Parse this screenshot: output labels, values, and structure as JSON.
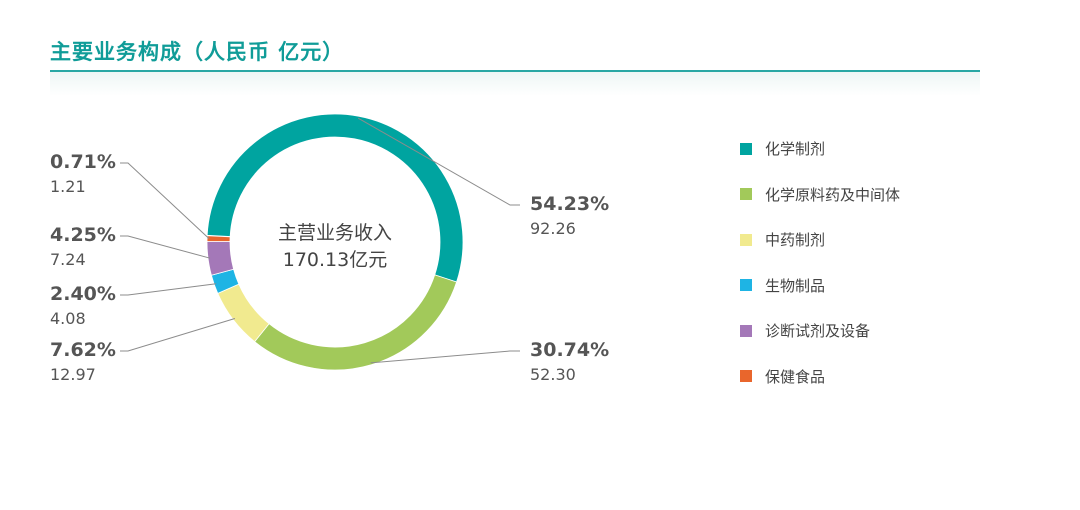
{
  "title": "主要业务构成（人民币 亿元）",
  "chart_data": {
    "type": "pie",
    "center_label": [
      "主营业务收入",
      "170.13亿元"
    ],
    "total": 170.13,
    "slices": [
      {
        "name": "化学制剂",
        "percent": "54.23%",
        "value": "92.26",
        "color": "#00a4a0"
      },
      {
        "name": "化学原料药及中间体",
        "percent": "30.74%",
        "value": "52.30",
        "color": "#a2c95a"
      },
      {
        "name": "中药制剂",
        "percent": "7.62%",
        "value": "12.97",
        "color": "#f1ea8f"
      },
      {
        "name": "生物制品",
        "percent": "2.40%",
        "value": "4.08",
        "color": "#1eb4e4"
      },
      {
        "name": "诊断试剂及设备",
        "percent": "4.25%",
        "value": "7.24",
        "color": "#a478b8"
      },
      {
        "name": "保健食品",
        "percent": "0.71%",
        "value": "1.21",
        "color": "#e9662c"
      }
    ]
  }
}
